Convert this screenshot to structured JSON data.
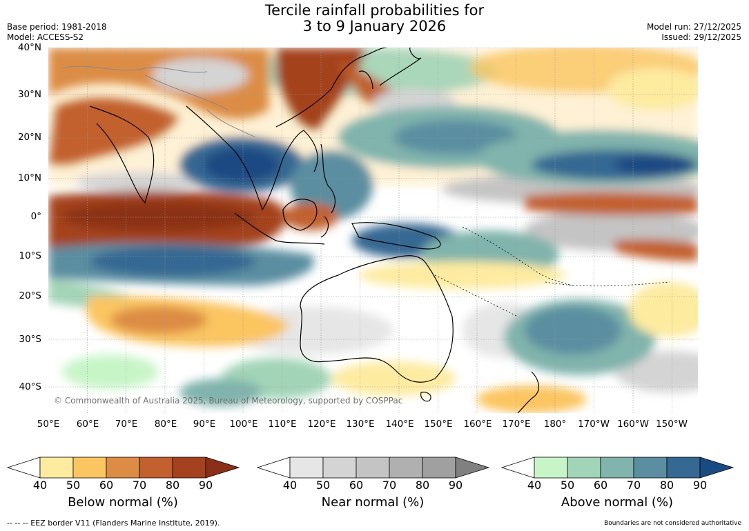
{
  "title": {
    "line1": "Tercile rainfall probabilities for",
    "line2": "3 to 9 January 2026"
  },
  "meta": {
    "base_period": "Base period: 1981-2018",
    "model": "Model: ACCESS-S2",
    "model_run": "Model run: 27/12/2025",
    "issued": "Issued: 29/12/2025"
  },
  "map": {
    "copyright": "© Commonwealth of Australia 2025, Bureau of Meteorology, supported by COSPPac",
    "lat_labels": [
      "40°N",
      "30°N",
      "20°N",
      "10°N",
      "0°",
      "10°S",
      "20°S",
      "30°S",
      "40°S"
    ],
    "lon_labels": [
      "50°E",
      "60°E",
      "70°E",
      "80°E",
      "90°E",
      "100°E",
      "110°E",
      "120°E",
      "130°E",
      "140°E",
      "150°E",
      "160°E",
      "170°E",
      "180°",
      "170°W",
      "160°W",
      "150°W"
    ]
  },
  "colorbars": [
    {
      "title": "Below normal (%)",
      "ticks": [
        "40",
        "50",
        "60",
        "70",
        "80",
        "90"
      ],
      "colors": [
        "#ffffff",
        "#fdeba0",
        "#fbc561",
        "#dc8c45",
        "#c2602e",
        "#a4421f",
        "#8b3018"
      ]
    },
    {
      "title": "Near normal (%)",
      "ticks": [
        "40",
        "50",
        "60",
        "70",
        "80",
        "90"
      ],
      "colors": [
        "#ffffff",
        "#e6e6e6",
        "#d4d4d4",
        "#c4c4c4",
        "#b0b0b0",
        "#a0a0a0",
        "#808080"
      ]
    },
    {
      "title": "Above normal (%)",
      "ticks": [
        "40",
        "50",
        "60",
        "70",
        "80",
        "90"
      ],
      "colors": [
        "#ffffff",
        "#c8f5c8",
        "#a2d4b8",
        "#80b4ac",
        "#5a8ea0",
        "#356892",
        "#1a4a82"
      ]
    }
  ],
  "footer": {
    "eez": "--  --  -- EEZ border V11 (Flanders Marine Institute, 2019).",
    "disclaimer": "Boundaries are not considered authoritative"
  }
}
